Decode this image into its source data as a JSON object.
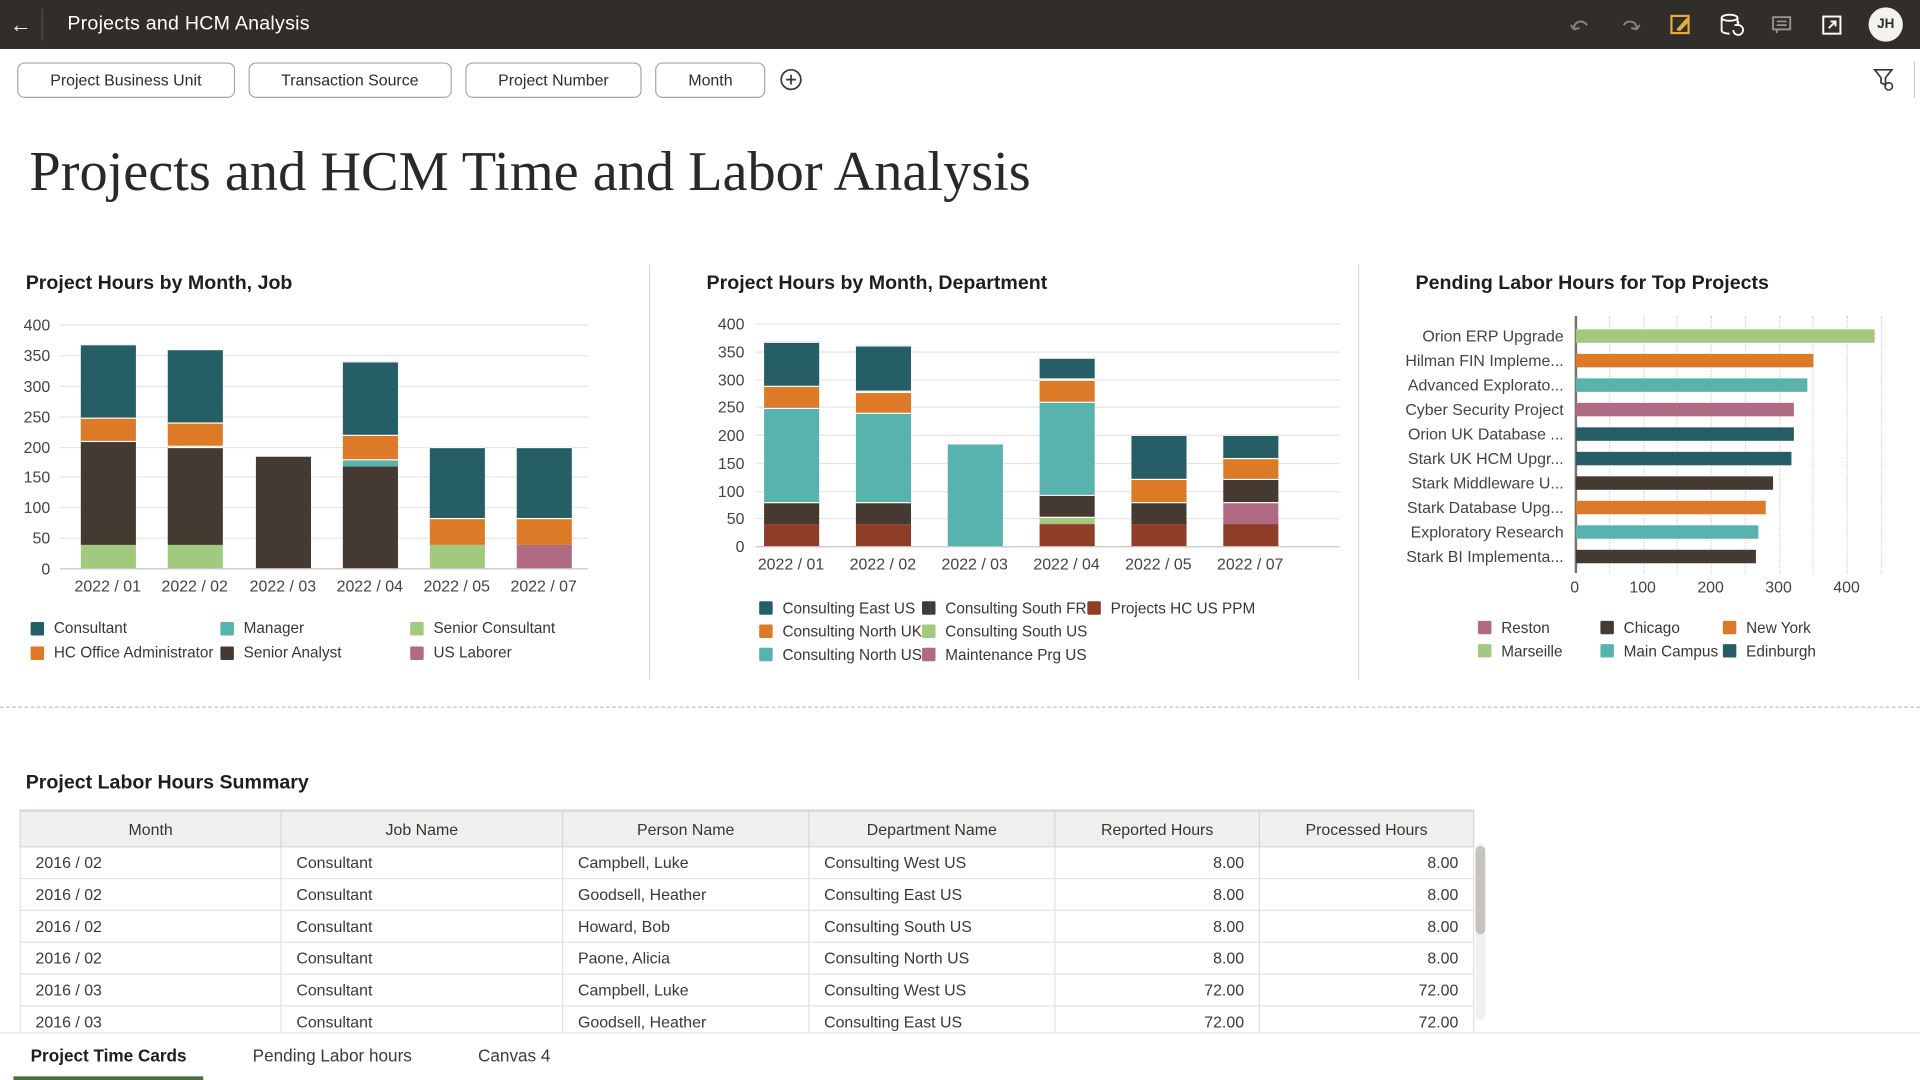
{
  "header": {
    "title": "Projects and HCM Analysis",
    "avatar_initials": "JH"
  },
  "filter_bar": {
    "filters": [
      "Project Business Unit",
      "Transaction Source",
      "Project Number",
      "Month"
    ]
  },
  "page_title": "Projects and HCM Time and Labor Analysis",
  "chart_data": [
    {
      "id": "hours_by_job",
      "type": "bar",
      "stacked": true,
      "title": "Project Hours by Month, Job",
      "categories": [
        "2022 / 01",
        "2022 / 02",
        "2022 / 03",
        "2022 / 04",
        "2022 / 05",
        "2022 / 07"
      ],
      "ylim": [
        0,
        400
      ],
      "ytick_step": 50,
      "series": [
        {
          "name": "Senior Consultant",
          "color": "#a2ca7f",
          "values": [
            38,
            38,
            0,
            0,
            38,
            0
          ]
        },
        {
          "name": "US Laborer",
          "color": "#b06a84",
          "values": [
            0,
            0,
            0,
            0,
            0,
            38
          ]
        },
        {
          "name": "Senior Analyst",
          "color": "#453a31",
          "values": [
            172,
            162,
            183,
            167,
            0,
            0
          ]
        },
        {
          "name": "Manager",
          "color": "#57b3ac",
          "values": [
            0,
            0,
            0,
            12,
            0,
            0
          ]
        },
        {
          "name": "HC Office Administrator",
          "color": "#dd7a27",
          "values": [
            38,
            40,
            0,
            41,
            44,
            44
          ]
        },
        {
          "name": "Consultant",
          "color": "#265e66",
          "values": [
            120,
            120,
            0,
            120,
            118,
            118
          ]
        }
      ],
      "legend": {
        "rows": 2,
        "items": [
          {
            "label": "Consultant",
            "color": "#265e66"
          },
          {
            "label": "HC Office Administrator",
            "color": "#dd7a27"
          },
          {
            "label": "Manager",
            "color": "#57b3ac"
          },
          {
            "label": "Senior Analyst",
            "color": "#453a31"
          },
          {
            "label": "Senior Consultant",
            "color": "#a2ca7f"
          },
          {
            "label": "US Laborer",
            "color": "#b06a84"
          }
        ]
      }
    },
    {
      "id": "hours_by_department",
      "type": "bar",
      "stacked": true,
      "title": "Project Hours by Month, Department",
      "categories": [
        "2022 / 01",
        "2022 / 02",
        "2022 / 03",
        "2022 / 04",
        "2022 / 05",
        "2022 / 07"
      ],
      "ylim": [
        0,
        400
      ],
      "ytick_step": 50,
      "series": [
        {
          "name": "Projects HC US PPM",
          "color": "#8e3d26",
          "values": [
            40,
            40,
            0,
            40,
            40,
            40
          ]
        },
        {
          "name": "Maintenance Prg US",
          "color": "#b06a84",
          "values": [
            0,
            0,
            0,
            0,
            0,
            40
          ]
        },
        {
          "name": "Consulting South US",
          "color": "#a2ca7f",
          "values": [
            0,
            0,
            0,
            12,
            0,
            0
          ]
        },
        {
          "name": "Consulting South FR",
          "color": "#453a31",
          "values": [
            40,
            40,
            0,
            41,
            40,
            40
          ]
        },
        {
          "name": "Consulting North US",
          "color": "#57b3ac",
          "values": [
            168,
            160,
            183,
            167,
            0,
            0
          ]
        },
        {
          "name": "Consulting North UK",
          "color": "#dd7a27",
          "values": [
            40,
            38,
            0,
            40,
            40,
            38
          ]
        },
        {
          "name": "Consulting East US",
          "color": "#265e66",
          "values": [
            80,
            82,
            0,
            38,
            80,
            42
          ]
        }
      ],
      "legend": {
        "rows": 3,
        "items": [
          {
            "label": "Consulting East US",
            "color": "#265e66"
          },
          {
            "label": "Consulting North UK",
            "color": "#dd7a27"
          },
          {
            "label": "Consulting North US",
            "color": "#57b3ac"
          },
          {
            "label": "Consulting South FR",
            "color": "#453a31"
          },
          {
            "label": "Consulting South US",
            "color": "#a2ca7f"
          },
          {
            "label": "Maintenance Prg US",
            "color": "#b06a84"
          },
          {
            "label": "Projects HC US PPM",
            "color": "#8e3d26"
          }
        ]
      }
    },
    {
      "id": "pending_labor_hours",
      "type": "bar",
      "orientation": "horizontal",
      "title": "Pending Labor Hours for Top Projects",
      "categories": [
        "Orion ERP Upgrade",
        "Hilman FIN Impleme...",
        "Advanced Explorato...",
        "Cyber Security Project",
        "Orion UK Database ...",
        "Stark UK HCM Upgr...",
        "Stark Middleware U...",
        "Stark Database Upg...",
        "Exploratory Research",
        "Stark BI Implementa..."
      ],
      "values": [
        440,
        350,
        340,
        320,
        320,
        318,
        290,
        280,
        268,
        265
      ],
      "bar_colors": [
        "#a2ca7f",
        "#dd7a27",
        "#57b3ac",
        "#b06a84",
        "#265e66",
        "#265e66",
        "#453a31",
        "#dd7a27",
        "#57b3ac",
        "#453a31"
      ],
      "xlim": [
        0,
        450
      ],
      "xticks": [
        0,
        100,
        200,
        300,
        400
      ],
      "legend": {
        "rows": 2,
        "items": [
          {
            "label": "Reston",
            "color": "#b06a84"
          },
          {
            "label": "Marseille",
            "color": "#a2ca7f"
          },
          {
            "label": "Chicago",
            "color": "#453a31"
          },
          {
            "label": "Main Campus",
            "color": "#57b3ac"
          },
          {
            "label": "New York",
            "color": "#dd7a27"
          },
          {
            "label": "Edinburgh",
            "color": "#265e66"
          }
        ]
      }
    }
  ],
  "summary_table": {
    "title": "Project Labor Hours Summary",
    "columns": [
      "Month",
      "Job Name",
      "Person Name",
      "Department Name",
      "Reported Hours",
      "Processed Hours"
    ],
    "rows": [
      [
        "2016 / 02",
        "Consultant",
        "Campbell, Luke",
        "Consulting West US",
        "8.00",
        "8.00"
      ],
      [
        "2016 / 02",
        "Consultant",
        "Goodsell, Heather",
        "Consulting East US",
        "8.00",
        "8.00"
      ],
      [
        "2016 / 02",
        "Consultant",
        "Howard, Bob",
        "Consulting South US",
        "8.00",
        "8.00"
      ],
      [
        "2016 / 02",
        "Consultant",
        "Paone, Alicia",
        "Consulting North US",
        "8.00",
        "8.00"
      ],
      [
        "2016 / 03",
        "Consultant",
        "Campbell, Luke",
        "Consulting West US",
        "72.00",
        "72.00"
      ],
      [
        "2016 / 03",
        "Consultant",
        "Goodsell, Heather",
        "Consulting East US",
        "72.00",
        "72.00"
      ]
    ]
  },
  "canvas_tabs": {
    "items": [
      "Project Time Cards",
      "Pending Labor hours",
      "Canvas 4"
    ],
    "active": "Project Time Cards"
  }
}
